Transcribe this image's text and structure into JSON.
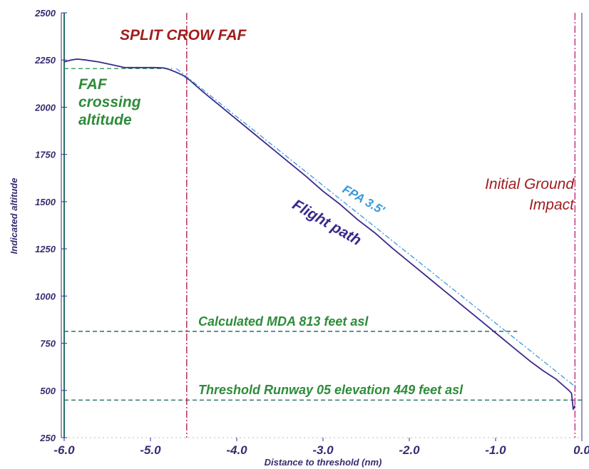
{
  "chart_data": {
    "type": "line",
    "xlabel": "Distance to threshold (nm)",
    "ylabel": "Indicated altitude",
    "xlim": [
      -6.0,
      0.0
    ],
    "ylim": [
      250,
      2500
    ],
    "x_tick_labels": [
      "-6.0",
      "-5.0",
      "-4.0",
      "-3.0",
      "-2.0",
      "-1.0",
      "0.0"
    ],
    "y_tick_labels": [
      "250",
      "500",
      "750",
      "1000",
      "1250",
      "1500",
      "1750",
      "2000",
      "2250",
      "2500"
    ],
    "x_ticks": [
      -6,
      -5,
      -4,
      -3,
      -2,
      -1,
      0
    ],
    "y_ticks": [
      250,
      500,
      750,
      1000,
      1250,
      1500,
      1750,
      2000,
      2250,
      2500
    ],
    "grid": false,
    "series": [
      {
        "name": "Flight path",
        "color": "#3a2a8c",
        "style": "solid",
        "x": [
          -6.0,
          -5.92,
          -5.85,
          -5.75,
          -5.6,
          -5.45,
          -5.3,
          -5.1,
          -4.95,
          -4.85,
          -4.78,
          -4.7,
          -4.62,
          -4.55,
          -4.4,
          -4.2,
          -4.0,
          -3.8,
          -3.6,
          -3.4,
          -3.2,
          -3.0,
          -2.8,
          -2.6,
          -2.4,
          -2.2,
          -2.0,
          -1.8,
          -1.6,
          -1.4,
          -1.2,
          -1.0,
          -0.8,
          -0.6,
          -0.45,
          -0.3,
          -0.2,
          -0.15,
          -0.12,
          -0.1,
          -0.08
        ],
        "y": [
          2240,
          2250,
          2255,
          2250,
          2240,
          2225,
          2210,
          2210,
          2210,
          2208,
          2200,
          2185,
          2168,
          2145,
          2085,
          2010,
          1935,
          1860,
          1785,
          1710,
          1635,
          1555,
          1485,
          1405,
          1335,
          1255,
          1180,
          1105,
          1030,
          955,
          880,
          805,
          730,
          655,
          605,
          560,
          520,
          500,
          485,
          400,
          420
        ]
      },
      {
        "name": "FPA 3.5'",
        "color": "#3a9ad8",
        "style": "dashed",
        "x": [
          -4.7,
          -0.05
        ],
        "y": [
          2205,
          510
        ]
      }
    ],
    "reference_lines": [
      {
        "label": "FAF crossing altitude",
        "axis": "y",
        "value": 2205,
        "x_from": -6.0,
        "x_to": -4.75,
        "color": "#2e9a5a"
      },
      {
        "label": "Calculated MDA 813 feet asl",
        "axis": "y",
        "value": 813,
        "x_from": -6.0,
        "x_to": -0.75,
        "color": "#2a6f6a"
      },
      {
        "label": "Threshold Runway 05 elevation 449 feet asl",
        "axis": "y",
        "value": 449,
        "x_from": -6.0,
        "x_to": 0.0,
        "color": "#2a6f6a"
      },
      {
        "label": "SPLIT CROW FAF",
        "axis": "x",
        "value": -4.58,
        "color": "#b02050"
      },
      {
        "label": "Initial Ground Impact",
        "axis": "x",
        "value": -0.08,
        "color": "#c0307a"
      }
    ],
    "annotations": [
      {
        "text": "SPLIT CROW FAF",
        "color": "#a01c1c"
      },
      {
        "text": "FAF",
        "color": "#2e8b3a"
      },
      {
        "text": "crossing",
        "color": "#2e8b3a"
      },
      {
        "text": "altitude",
        "color": "#2e8b3a"
      },
      {
        "text": "FPA 3.5'",
        "color": "#3a9ad8"
      },
      {
        "text": "Flight path",
        "color": "#3a2a8c"
      },
      {
        "text": "Initial Ground",
        "color": "#a01c1c"
      },
      {
        "text": "Impact",
        "color": "#a01c1c"
      },
      {
        "text": "Calculated MDA 813 feet asl",
        "color": "#2e8b3a"
      },
      {
        "text": "Threshold Runway 05 elevation 449 feet asl",
        "color": "#2e8b3a"
      }
    ]
  }
}
